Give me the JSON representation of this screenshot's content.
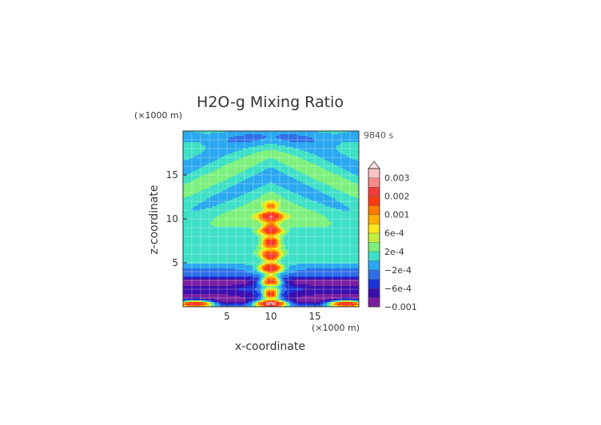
{
  "chart_data": {
    "type": "heatmap",
    "title": "H2O-g Mixing Ratio",
    "time_label": "9840 s",
    "xlabel": "x-coordinate",
    "ylabel": "z-coordinate",
    "x_unit": "(×1000 m)",
    "y_unit": "(×1000 m)",
    "xlim": [
      0,
      20
    ],
    "ylim": [
      0,
      20
    ],
    "x_ticks": [
      5,
      10,
      15
    ],
    "y_ticks": [
      5,
      10,
      15
    ],
    "grid": true,
    "colorbar": {
      "labels": [
        {
          "text": "0.003",
          "value": 0.003
        },
        {
          "text": "0.002",
          "value": 0.002
        },
        {
          "text": "0.001",
          "value": 0.001
        },
        {
          "text": "6e-4",
          "value": 0.0006
        },
        {
          "text": "2e-4",
          "value": 0.0002
        },
        {
          "text": "−2e-4",
          "value": -0.0002
        },
        {
          "text": "−6e-4",
          "value": -0.0006
        },
        {
          "text": "−0.001",
          "value": -0.001
        }
      ],
      "levels": [
        {
          "min": -0.001,
          "max": -0.0008,
          "color": "#7b1fa2"
        },
        {
          "min": -0.0008,
          "max": -0.0006,
          "color": "#3a0fb0"
        },
        {
          "min": -0.0006,
          "max": -0.0004,
          "color": "#1a32d6"
        },
        {
          "min": -0.0004,
          "max": -0.0002,
          "color": "#2f6ee8"
        },
        {
          "min": -0.0002,
          "max": 0.0,
          "color": "#2aa8f0"
        },
        {
          "min": 0.0,
          "max": 0.0002,
          "color": "#3ee0c6"
        },
        {
          "min": 0.0002,
          "max": 0.0004,
          "color": "#7df07d"
        },
        {
          "min": 0.0004,
          "max": 0.0006,
          "color": "#c4f03a"
        },
        {
          "min": 0.0006,
          "max": 0.0008,
          "color": "#ffe81a"
        },
        {
          "min": 0.0008,
          "max": 0.001,
          "color": "#ffb000"
        },
        {
          "min": 0.001,
          "max": 0.0015,
          "color": "#ff7a00"
        },
        {
          "min": 0.0015,
          "max": 0.002,
          "color": "#ff3a10"
        },
        {
          "min": 0.002,
          "max": 0.0025,
          "color": "#f43a3a"
        },
        {
          "min": 0.0025,
          "max": 0.003,
          "color": "#f88a8a"
        },
        {
          "min": 0.003,
          "max": 0.0035,
          "color": "#fbc4c4"
        }
      ]
    },
    "field_approx": {
      "background_value": 0.0001,
      "plume_axis_x": 10,
      "plume_top_z": 10.5,
      "plume_peak": 0.0023,
      "low_z_bands": [
        {
          "z": 4.2,
          "value": -0.0003
        },
        {
          "z": 3.0,
          "value": -0.0007
        },
        {
          "z": 2.5,
          "value": -0.0005
        },
        {
          "z": 1.5,
          "value": -0.0007
        },
        {
          "z": 0.6,
          "value": -0.0009
        }
      ]
    }
  },
  "colors": {
    "axis": "#333333",
    "grid": "#ffffff",
    "title": "#333333"
  }
}
